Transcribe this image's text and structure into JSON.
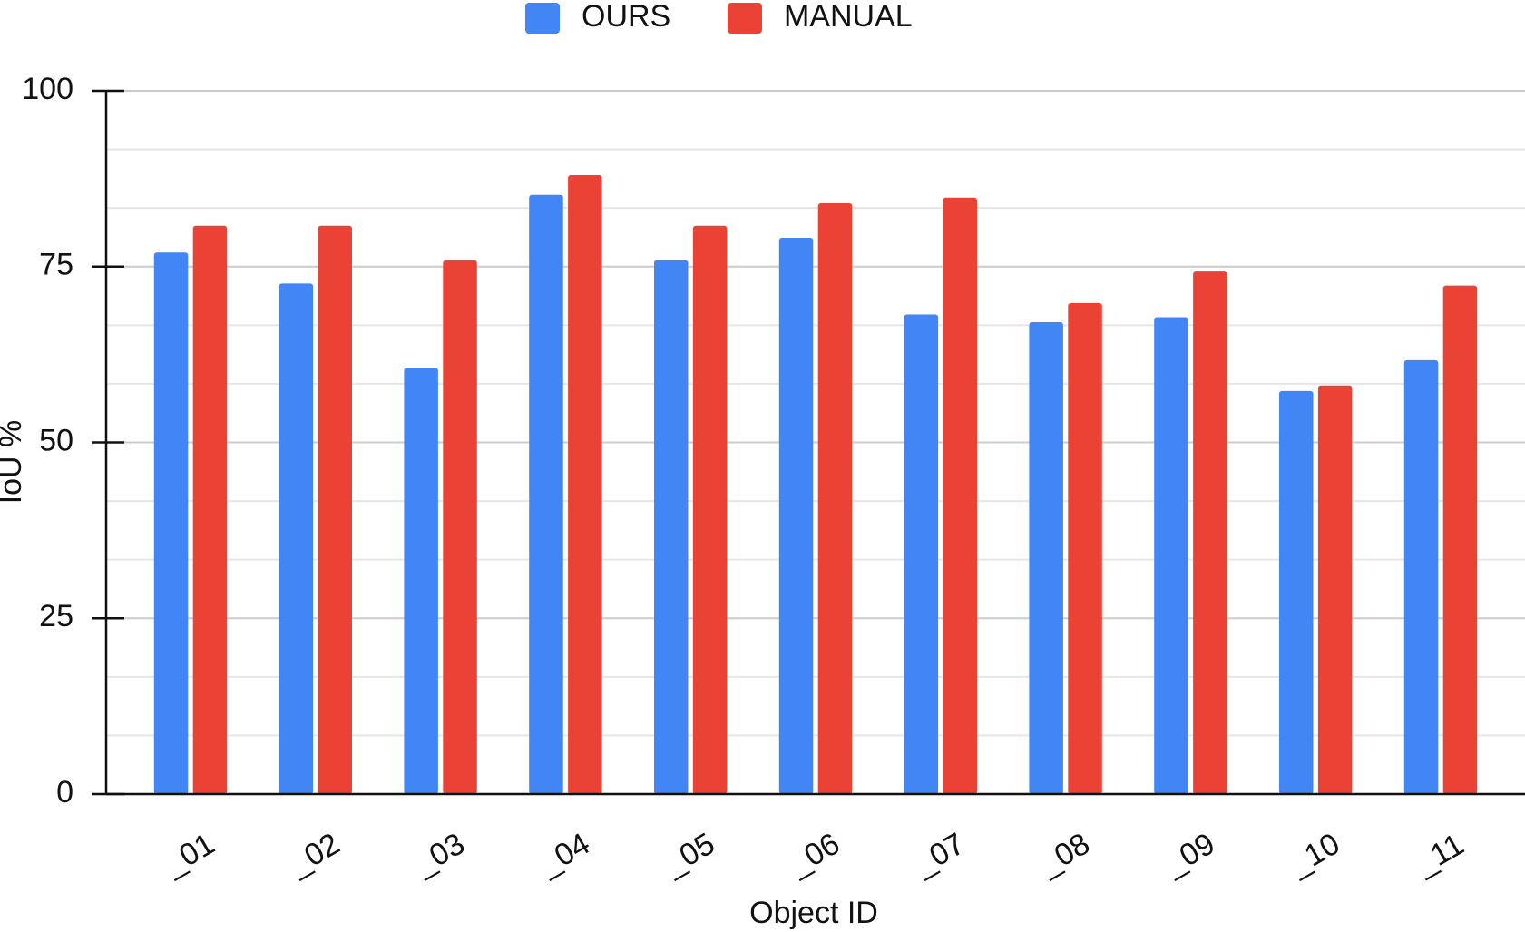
{
  "chart_data": {
    "type": "bar",
    "x_label": "Object ID",
    "y_label": "IoU %",
    "categories": [
      "_01",
      "_02",
      "_03",
      "_04",
      "_05",
      "_06",
      "_07",
      "_08",
      "_09",
      "_10",
      "_11"
    ],
    "series": [
      {
        "name": "OURS",
        "color": "#4285f4",
        "values": [
          77.0,
          72.6,
          60.6,
          85.2,
          75.9,
          79.1,
          68.2,
          67.1,
          67.8,
          57.3,
          61.7
        ]
      },
      {
        "name": "MANUAL",
        "color": "#ea4335",
        "values": [
          80.8,
          80.8,
          75.9,
          88.0,
          80.8,
          84.0,
          84.8,
          69.8,
          74.3,
          58.1,
          72.3
        ]
      }
    ],
    "ylim": [
      0,
      100
    ],
    "yticks": [
      0,
      25,
      50,
      75,
      100
    ],
    "grid": true,
    "minor_grid_divisions": 3,
    "legend": "top"
  }
}
